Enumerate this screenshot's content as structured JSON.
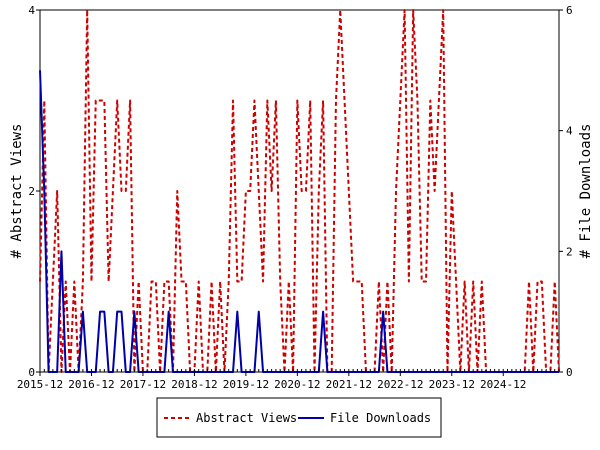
{
  "chart_data": {
    "type": "line",
    "title": "",
    "xlabel": "",
    "ylabel": "# Abstract Views",
    "y2label": "# File Downloads",
    "ylim": [
      0,
      4
    ],
    "y2lim": [
      0,
      6
    ],
    "yticks": [
      "0",
      "2",
      "4"
    ],
    "y2ticks": [
      "0",
      "2",
      "4",
      "6"
    ],
    "x_tick_labels": [
      "2015-12",
      "2016-12",
      "2017-12",
      "2018-12",
      "2019-12",
      "2020-12",
      "2021-12",
      "2022-12",
      "2023-12",
      "2024-12"
    ],
    "x_tick_index": [
      0,
      12,
      24,
      36,
      48,
      60,
      72,
      84,
      96,
      108
    ],
    "grid": false,
    "legend": "bottom",
    "colors": {
      "abstract_views": "#cc0000",
      "file_downloads": "#0000aa"
    },
    "series": [
      {
        "name": "Abstract Views",
        "axis": "left",
        "style": "dashed",
        "values": [
          1,
          3,
          0,
          1,
          2,
          0,
          1,
          0,
          1,
          0,
          1,
          4,
          1,
          3,
          3,
          3,
          1,
          2,
          3,
          2,
          2,
          3,
          0,
          1,
          0,
          0,
          1,
          1,
          0,
          1,
          1,
          0,
          2,
          1,
          1,
          0,
          0,
          1,
          0,
          0,
          1,
          0,
          1,
          0,
          1,
          3,
          1,
          1,
          2,
          2,
          3,
          2,
          1,
          3,
          2,
          3,
          1,
          0,
          1,
          0,
          3,
          2,
          2,
          3,
          0,
          2,
          3,
          0,
          0,
          3,
          4,
          3,
          2,
          1,
          1,
          1,
          0,
          0,
          0,
          1,
          0,
          1,
          0,
          2,
          3,
          4,
          1,
          4,
          3,
          1,
          1,
          3,
          2,
          3,
          4,
          0,
          2,
          1,
          0,
          1,
          0,
          1,
          0,
          1,
          0,
          0,
          0,
          0,
          0,
          0,
          0,
          0,
          0,
          0,
          1,
          0,
          1,
          1,
          0,
          0,
          1,
          0
        ]
      },
      {
        "name": "File Downloads",
        "axis": "right",
        "style": "solid",
        "values": [
          5,
          3,
          0,
          0,
          0,
          2,
          0,
          0,
          0,
          0,
          1,
          0,
          0,
          0,
          1,
          1,
          0,
          0,
          1,
          1,
          0,
          0,
          1,
          0,
          0,
          0,
          0,
          0,
          0,
          0,
          1,
          0,
          0,
          0,
          0,
          0,
          0,
          0,
          0,
          0,
          0,
          0,
          0,
          0,
          0,
          0,
          1,
          0,
          0,
          0,
          0,
          1,
          0,
          0,
          0,
          0,
          0,
          0,
          0,
          0,
          0,
          0,
          0,
          0,
          0,
          0,
          1,
          0,
          0,
          0,
          0,
          0,
          0,
          0,
          0,
          0,
          0,
          0,
          0,
          0,
          1,
          0,
          0,
          0,
          0,
          0,
          0,
          0,
          0,
          0,
          0,
          0,
          0,
          0,
          0,
          0,
          0,
          0,
          0,
          0,
          0,
          0,
          0,
          0,
          0,
          0,
          0,
          0,
          0,
          0,
          0,
          0,
          0,
          0,
          0,
          0,
          0,
          0,
          0,
          0,
          0,
          0
        ]
      }
    ]
  }
}
